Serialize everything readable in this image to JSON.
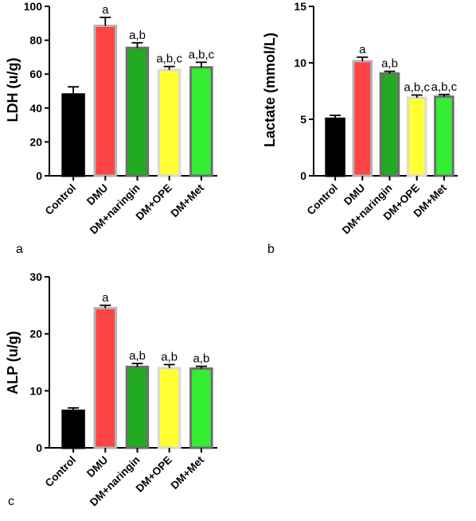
{
  "chart_data": [
    {
      "type": "bar",
      "panel_label": "a",
      "ylabel": "LDH (u/g)",
      "categories": [
        "Control",
        "DMU",
        "DM+naringin",
        "DM+OPE",
        "DM+Met"
      ],
      "values": [
        48,
        88.5,
        75.5,
        62.5,
        64
      ],
      "errors": [
        4.5,
        5,
        3,
        2,
        3
      ],
      "annotations": [
        "",
        "a",
        "a,b",
        "a,b,c",
        "a,b,c"
      ],
      "yticks": [
        "0",
        "20",
        "40",
        "60",
        "80",
        "100"
      ],
      "ylim": [
        0,
        100
      ],
      "bar_colors": [
        "#000000",
        "#ff4444",
        "#22aa22",
        "#ffff33",
        "#33ee33"
      ],
      "bar_edge_colors": [
        "#000000",
        "#b3b3b3",
        "#6e6e6e",
        "#d9d9d9",
        "#6e6e6e"
      ]
    },
    {
      "type": "bar",
      "panel_label": "b",
      "ylabel": "Lactate (mmol/L)",
      "categories": [
        "Control",
        "DMU",
        "DM+naringin",
        "DM+OPE",
        "DM+Met"
      ],
      "values": [
        5.05,
        10.15,
        9.05,
        6.9,
        7.0
      ],
      "errors": [
        0.3,
        0.35,
        0.2,
        0.25,
        0.2
      ],
      "annotations": [
        "",
        "a",
        "a,b",
        "a,b,c",
        "a,b,c"
      ],
      "yticks": [
        "0",
        "5",
        "10",
        "15"
      ],
      "ylim": [
        0,
        15
      ],
      "bar_colors": [
        "#000000",
        "#ff4444",
        "#22aa22",
        "#ffff33",
        "#33ee33"
      ],
      "bar_edge_colors": [
        "#000000",
        "#b3b3b3",
        "#6e6e6e",
        "#d9d9d9",
        "#6e6e6e"
      ]
    },
    {
      "type": "bar",
      "panel_label": "c",
      "ylabel": "ALP (u/g)",
      "categories": [
        "Control",
        "DMU",
        "DM+naringin",
        "DM+OPE",
        "DM+Met"
      ],
      "values": [
        6.5,
        24.5,
        14.2,
        14.0,
        13.9
      ],
      "errors": [
        0.5,
        0.5,
        0.6,
        0.6,
        0.4
      ],
      "annotations": [
        "",
        "a",
        "a,b",
        "a,b",
        "a,b"
      ],
      "yticks": [
        "0",
        "10",
        "20",
        "30"
      ],
      "ylim": [
        0,
        30
      ],
      "bar_colors": [
        "#000000",
        "#ff4444",
        "#22aa22",
        "#ffff33",
        "#33ee33"
      ],
      "bar_edge_colors": [
        "#000000",
        "#b3b3b3",
        "#6e6e6e",
        "#d9d9d9",
        "#6e6e6e"
      ]
    }
  ]
}
